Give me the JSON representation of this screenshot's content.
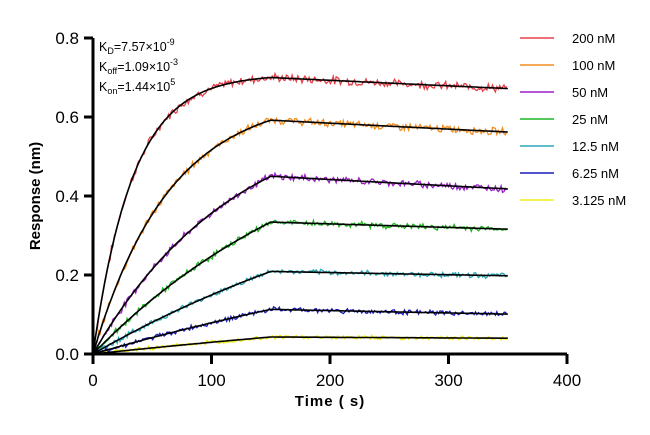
{
  "chart_data": {
    "type": "line",
    "title": "",
    "xlabel": "Time ( s)",
    "ylabel": "Response (nm)",
    "xlim": [
      0,
      400
    ],
    "ylim": [
      0,
      0.8
    ],
    "xticks": [
      "0",
      "100",
      "200",
      "300",
      "400"
    ],
    "yticks": [
      "0.0",
      "0.2",
      "0.4",
      "0.6",
      "0.8"
    ],
    "xtick_values": [
      0,
      100,
      200,
      300,
      400
    ],
    "ytick_values": [
      0,
      0.2,
      0.4,
      0.6,
      0.8
    ],
    "grid": false,
    "legend_position": "top-right",
    "association_end_s": 150,
    "dissociation_end_s": 350,
    "annotations": {
      "kd": {
        "label": "K",
        "sub": "D",
        "value": "=7.57×10",
        "exp": "-9"
      },
      "koff": {
        "label": "K",
        "sub": "off",
        "value": "=1.09×10",
        "exp": "-3"
      },
      "kon": {
        "label": "K",
        "sub": "on",
        "value": "=1.44×10",
        "exp": "5"
      }
    },
    "fit_color": "#000000",
    "series": [
      {
        "name": "200 nM",
        "color": "#e8404a",
        "peak": 0.7,
        "end": 0.672,
        "kobs": 0.0298
      },
      {
        "name": "100 nM",
        "color": "#f28c1e",
        "peak": 0.592,
        "end": 0.562,
        "kobs": 0.0155
      },
      {
        "name": "50 nM",
        "color": "#9b1fc8",
        "peak": 0.45,
        "end": 0.418,
        "kobs": 0.0083
      },
      {
        "name": "25 nM",
        "color": "#1fb522",
        "peak": 0.334,
        "end": 0.316,
        "kobs": 0.0047
      },
      {
        "name": "12.5 nM",
        "color": "#2aa8b8",
        "peak": 0.209,
        "end": 0.198,
        "kobs": 0.003
      },
      {
        "name": "6.25 nM",
        "color": "#1a1ab8",
        "peak": 0.113,
        "end": 0.101,
        "kobs": 0.002
      },
      {
        "name": "3.125 nM",
        "color": "#f2ee1a",
        "peak": 0.043,
        "end": 0.04,
        "kobs": 0.0015
      }
    ]
  }
}
